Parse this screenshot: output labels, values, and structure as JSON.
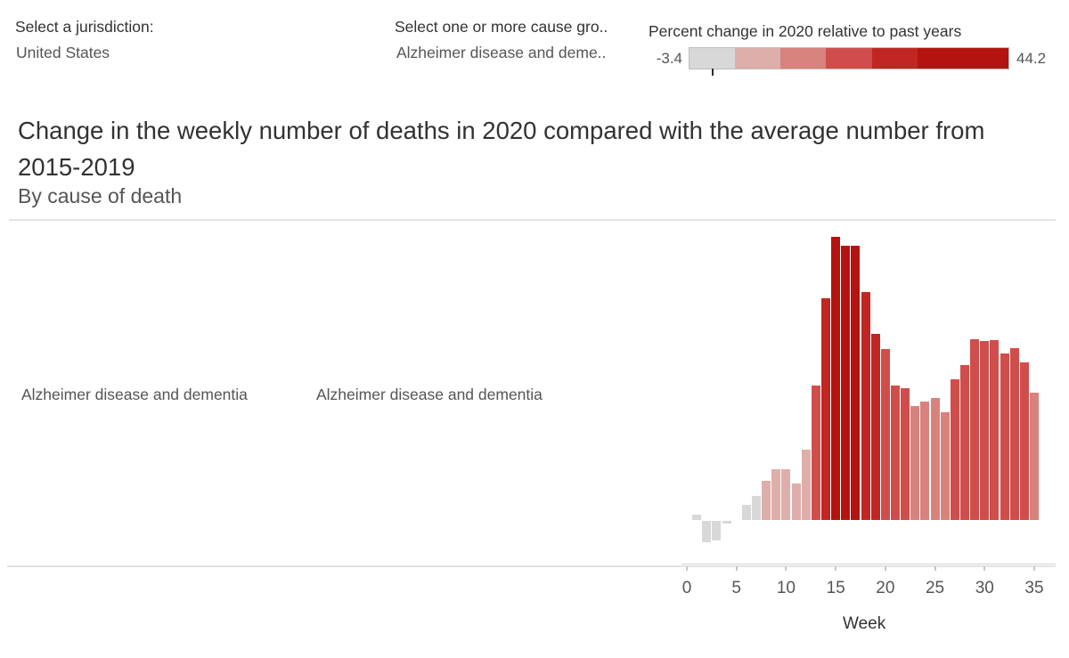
{
  "filters": {
    "jurisdiction_label": "Select a jurisdiction:",
    "jurisdiction_value": "United States",
    "cause_label": "Select one or more cause gro..",
    "cause_value": "Alzheimer disease and deme.."
  },
  "legend": {
    "title": "Percent change in 2020 relative to past years",
    "min_label": "-3.4",
    "max_label": "44.2"
  },
  "title": {
    "line1": "Change in the weekly number of deaths in 2020 compared with the average number from",
    "line2": "2015-2019",
    "subtitle": "By cause of death"
  },
  "row_headers": {
    "cause_group": "Alzheimer disease and dementia",
    "cause_subgroup": "Alzheimer disease and dementia"
  },
  "chart_data": {
    "type": "bar",
    "title": "Change in the weekly number of deaths in 2020 compared with the average number from 2015-2019",
    "xlabel": "Week",
    "ylabel": "Percent change in 2020 relative to past years",
    "x_ticks": [
      0,
      5,
      10,
      15,
      20,
      25,
      30,
      35
    ],
    "x_range": [
      0,
      35
    ],
    "color_domain": [
      -3.4,
      44.2
    ],
    "color_thresholds": [
      4.53,
      12.47,
      20.4,
      28.33,
      36.27
    ],
    "colors": [
      "#d8d8d8",
      "#deaeaa",
      "#d8827d",
      "#cf4e4b",
      "#c02622",
      "#b41310"
    ],
    "legend_position": "top-right",
    "grid": false,
    "series": [
      {
        "name": "Alzheimer disease and dementia",
        "weeks": [
          0,
          1,
          2,
          3,
          4,
          5,
          6,
          7,
          8,
          9,
          10,
          11,
          12,
          13,
          14,
          15,
          16,
          17,
          18,
          19,
          20,
          21,
          22,
          23,
          24,
          25,
          26,
          27,
          28,
          29,
          30,
          31,
          32,
          33,
          34,
          35
        ],
        "values": [
          0,
          0.9,
          -3.4,
          -3.0,
          -0.4,
          0,
          2.4,
          3.8,
          6.1,
          7.9,
          7.9,
          5.7,
          11.0,
          21.0,
          34.6,
          44.2,
          42.8,
          42.8,
          35.6,
          29.0,
          26.7,
          21.0,
          20.6,
          17.8,
          18.5,
          19.0,
          16.8,
          21.9,
          24.2,
          28.2,
          27.9,
          28.0,
          26.0,
          26.8,
          24.6,
          19.8
        ]
      }
    ]
  }
}
